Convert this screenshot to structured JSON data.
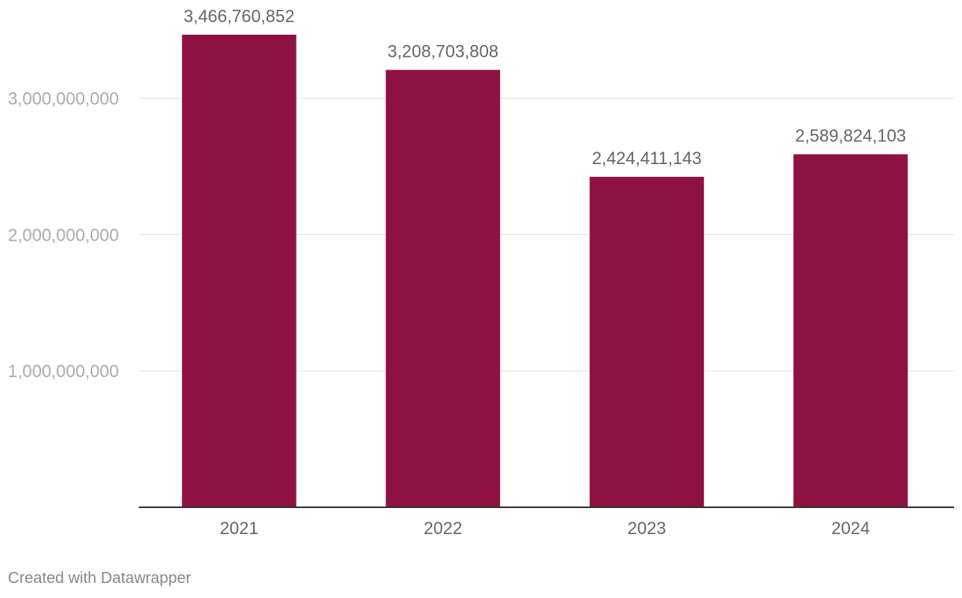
{
  "chart_data": {
    "type": "bar",
    "categories": [
      "2021",
      "2022",
      "2023",
      "2024"
    ],
    "values": [
      3466760852,
      3208703808,
      2424411143,
      2589824103
    ],
    "value_labels": [
      "3,466,760,852",
      "3,208,703,808",
      "2,424,411,143",
      "2,589,824,103"
    ],
    "y_ticks": [
      1000000000,
      2000000000,
      3000000000
    ],
    "y_tick_labels": [
      "1,000,000,000",
      "2,000,000,000",
      "3,000,000,000"
    ],
    "ylim": [
      0,
      3466760852
    ],
    "grid": true,
    "bar_color": "#8e1241",
    "title": "",
    "xlabel": "",
    "ylabel": ""
  },
  "footer": {
    "credit": "Created with Datawrapper"
  }
}
